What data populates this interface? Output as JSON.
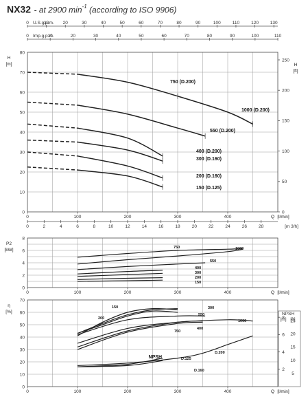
{
  "header": {
    "model": "NX32",
    "condition": " - at 2900 min",
    "superscript": "-1",
    "standard": " (according to ISO 9906)"
  },
  "top_scales": {
    "usgpm": {
      "label": "U.S.g.p.m.",
      "ticks": [
        "0",
        "10",
        "20",
        "30",
        "40",
        "50",
        "60",
        "70",
        "80",
        "90",
        "100",
        "110",
        "120",
        "130"
      ]
    },
    "impgpm": {
      "label": "Imp.g.p.m.",
      "ticks": [
        "0",
        "10",
        "20",
        "30",
        "40",
        "50",
        "60",
        "70",
        "80",
        "90",
        "100",
        "110"
      ]
    },
    "m3h": {
      "label": "[m 3/h]",
      "ticks": [
        "0",
        "2",
        "4",
        "6",
        "8",
        "10",
        "12",
        "14",
        "16",
        "18",
        "20",
        "22",
        "24",
        "26",
        "28"
      ]
    }
  },
  "chart_data": [
    {
      "type": "line",
      "panel": "head",
      "ylabel": "H",
      "yunit": "[m]",
      "y2label": "H",
      "y2unit": "[ft]",
      "xlabel": "Q",
      "xunit": "[l/min]",
      "xlim": [
        0,
        500
      ],
      "ylim": [
        0,
        80
      ],
      "xticks": [
        "0",
        "100",
        "200",
        "300",
        "400"
      ],
      "yticks": [
        "0",
        "10",
        "20",
        "30",
        "40",
        "50",
        "60",
        "70",
        "80"
      ],
      "y2ticks": [
        "0",
        "50",
        "100",
        "150",
        "200",
        "250"
      ],
      "series": [
        {
          "name": "1000 (D.200)",
          "x": [
            0,
            100,
            200,
            300,
            400,
            450
          ],
          "y": [
            70,
            69,
            65,
            58,
            50,
            44
          ]
        },
        {
          "name": "750 (D.200)",
          "x": [
            0,
            100,
            200,
            300,
            400,
            450
          ],
          "y": [
            70,
            69,
            65,
            58,
            50,
            44
          ]
        },
        {
          "name": "550 (D.200)",
          "x": [
            0,
            100,
            200,
            300,
            355
          ],
          "y": [
            55,
            53.5,
            49,
            42,
            38
          ]
        },
        {
          "name": "400 (D.200)",
          "x": [
            0,
            100,
            200,
            270
          ],
          "y": [
            44,
            42,
            37,
            28
          ]
        },
        {
          "name": "300 (D.160)",
          "x": [
            0,
            100,
            200,
            270
          ],
          "y": [
            36,
            35,
            31,
            25.5
          ]
        },
        {
          "name": "200 (D.160)",
          "x": [
            0,
            100,
            200,
            270
          ],
          "y": [
            30,
            28,
            23,
            17
          ]
        },
        {
          "name": "150 (D.125)",
          "x": [
            0,
            100,
            200,
            270
          ],
          "y": [
            22.5,
            21,
            18,
            12.5
          ]
        }
      ]
    },
    {
      "type": "line",
      "panel": "power",
      "ylabel": "P2",
      "yunit": "[kW]",
      "xlabel": "Q",
      "xunit": "[l/min]",
      "xlim": [
        0,
        500
      ],
      "ylim": [
        0,
        8
      ],
      "xticks": [
        "0",
        "100",
        "200",
        "300",
        "400"
      ],
      "yticks": [
        "0",
        "2",
        "4",
        "6",
        "8"
      ],
      "series": [
        {
          "name": "1000",
          "x": [
            100,
            200,
            300,
            400,
            430
          ],
          "y": [
            4.9,
            5.5,
            6.0,
            6.2,
            6.3
          ]
        },
        {
          "name": "750",
          "x": [
            100,
            200,
            300,
            400,
            430
          ],
          "y": [
            3.8,
            4.5,
            5.1,
            5.8,
            6.2
          ]
        },
        {
          "name": "550",
          "x": [
            100,
            200,
            300,
            355
          ],
          "y": [
            2.9,
            3.4,
            3.8,
            4.0
          ]
        },
        {
          "name": "400",
          "x": [
            100,
            200,
            270
          ],
          "y": [
            2.2,
            2.6,
            2.8
          ]
        },
        {
          "name": "300",
          "x": [
            100,
            200,
            270
          ],
          "y": [
            1.8,
            2.1,
            2.3
          ]
        },
        {
          "name": "200",
          "x": [
            100,
            200,
            270
          ],
          "y": [
            1.3,
            1.5,
            1.6
          ]
        },
        {
          "name": "150",
          "x": [
            100,
            200,
            270
          ],
          "y": [
            1.0,
            1.1,
            1.2
          ]
        }
      ]
    },
    {
      "type": "line",
      "panel": "efficiency_npsh",
      "ylabel": "η",
      "yunit": "[%]",
      "y2label": "NPSH",
      "y2unit_m": "[m]",
      "y2unit_ft": "[ft]",
      "xlabel": "Q",
      "xunit": "[l/min]",
      "xlim": [
        0,
        500
      ],
      "ylim": [
        0,
        70
      ],
      "xticks": [
        "0",
        "100",
        "200",
        "300",
        "400"
      ],
      "yticks": [
        "0",
        "10",
        "20",
        "30",
        "40",
        "50",
        "60",
        "70"
      ],
      "npsh_m_ticks": [
        "2",
        "4",
        "6",
        "8"
      ],
      "npsh_ft_ticks": [
        "5",
        "10",
        "15",
        "20",
        "25"
      ],
      "npsh_label": "NPSH",
      "series": [
        {
          "name": "150",
          "x": [
            100,
            150,
            200,
            250,
            300
          ],
          "y": [
            41,
            52,
            60,
            63,
            62
          ]
        },
        {
          "name": "200",
          "x": [
            100,
            150,
            200,
            250,
            300
          ],
          "y": [
            43,
            51,
            58,
            62,
            63
          ]
        },
        {
          "name": "300",
          "x": [
            100,
            150,
            200,
            250,
            300
          ],
          "y": [
            43,
            50,
            57,
            61,
            60
          ]
        },
        {
          "name": "550",
          "x": [
            100,
            200,
            300,
            355
          ],
          "y": [
            42,
            54,
            57,
            57
          ]
        },
        {
          "name": "400",
          "x": [
            100,
            200,
            300,
            350
          ],
          "y": [
            30,
            44,
            51,
            52
          ]
        },
        {
          "name": "750",
          "x": [
            100,
            200,
            300,
            350
          ],
          "y": [
            32,
            45,
            52,
            53
          ]
        },
        {
          "name": "1000",
          "x": [
            100,
            200,
            300,
            400,
            450
          ],
          "y": [
            35,
            47,
            52,
            54,
            53
          ]
        },
        {
          "name": "NPSH D.200",
          "x": [
            100,
            200,
            300,
            350,
            400,
            450
          ],
          "y": [
            17,
            19,
            23,
            27,
            34,
            41
          ]
        },
        {
          "name": "NPSH D.125",
          "x": [
            100,
            200,
            270
          ],
          "y": [
            16,
            18,
            23
          ]
        },
        {
          "name": "NPSH D.160",
          "x": [
            100,
            200,
            270
          ],
          "y": [
            16,
            17,
            21
          ]
        }
      ],
      "labels": {
        "d200": "D.200",
        "d125": "D.125",
        "d160": "D.160"
      }
    }
  ]
}
